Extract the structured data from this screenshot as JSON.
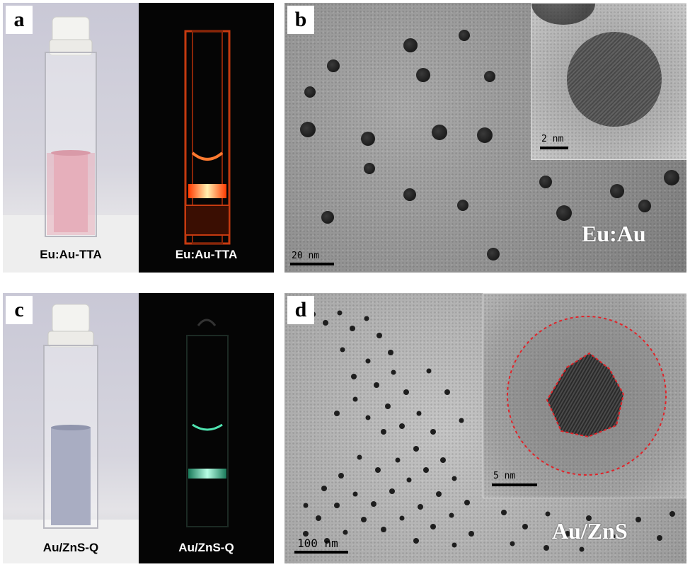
{
  "panels": {
    "a": {
      "letter": "a",
      "left_caption": "Eu:Au-TTA",
      "right_caption": "Eu:Au-TTA",
      "glow_color": "#ff6a1a"
    },
    "b": {
      "letter": "b",
      "scale_label": "20 nm",
      "inset_scale_label": "2 nm",
      "sample_label": "Eu:Au"
    },
    "c": {
      "letter": "c",
      "left_caption": "Au/ZnS-Q",
      "right_caption": "Au/ZnS-Q",
      "glow_color": "#4fe3b0"
    },
    "d": {
      "letter": "d",
      "scale_label": "100 nm",
      "inset_scale_label": "5 nm",
      "sample_label": "Au/ZnS",
      "outline_color": "#e0242a"
    }
  }
}
